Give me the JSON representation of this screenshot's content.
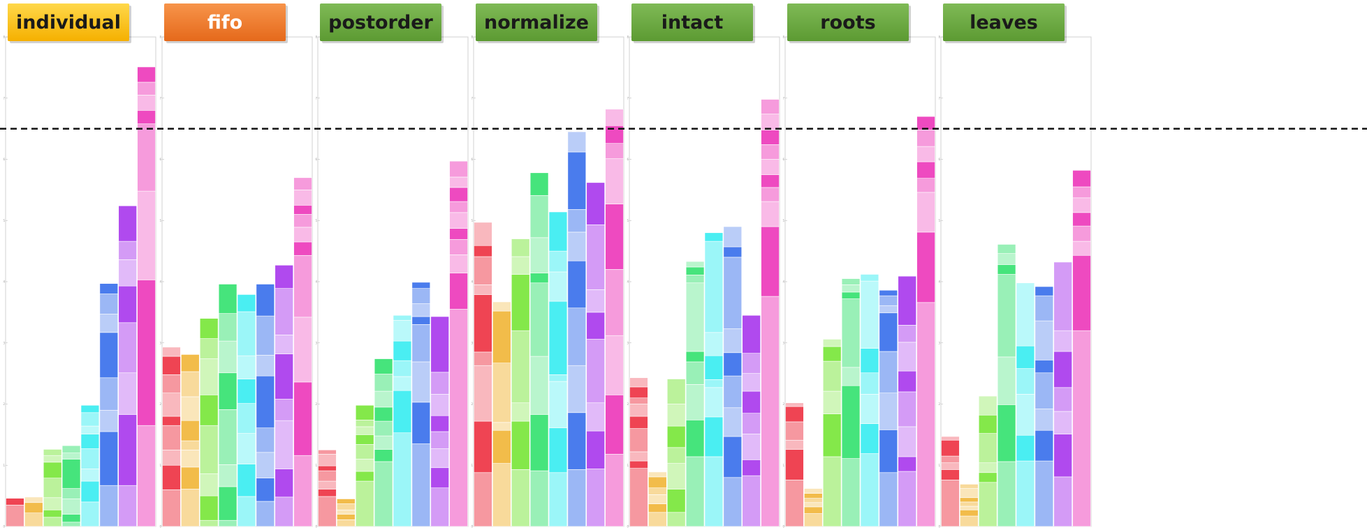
{
  "chart_data": {
    "type": "bar",
    "stacked": true,
    "ylim": [
      0,
      8
    ],
    "reference_line": 6.5,
    "legend_placement": "top-right",
    "bar_colors": [
      "#ef4453",
      "#f2bc4a",
      "#84e84a",
      "#46e47c",
      "#4aeef2",
      "#4a7ced",
      "#b04aee",
      "#ee4ac0"
    ],
    "panels": [
      {
        "label": "individual",
        "label_style": "yellow",
        "segments": [
          [
            0.35,
            0.11
          ],
          [
            0.22,
            0.17,
            0.09
          ],
          [
            0.15,
            0.12,
            0.2,
            0.32,
            0.26,
            0.11,
            0.1
          ],
          [
            0.07,
            0.13,
            0.25,
            0.17,
            0.48,
            0.1,
            0.12
          ],
          [
            0.4,
            0.34,
            0.2,
            0.33,
            0.24,
            0.13,
            0.22,
            0.12
          ],
          [
            0.67,
            0.88,
            0.35,
            0.53,
            0.74,
            0.3,
            0.33,
            0.17
          ],
          [
            0.67,
            1.16,
            0.68,
            0.82,
            0.6,
            0.43,
            0.3,
            0.58
          ],
          [
            1.65,
            2.38,
            1.45,
            1.1,
            0.22,
            0.25,
            0.21,
            0.25
          ]
        ]
      },
      {
        "label": "fifo",
        "label_style": "orange",
        "segments": [
          [
            0.6,
            0.4,
            0.25,
            0.4,
            0.15,
            0.38,
            0.3,
            0.3,
            0.15
          ],
          [
            0.61,
            0.36,
            0.28,
            0.15,
            0.33,
            0.39,
            0.41,
            0.28
          ],
          [
            0.1,
            0.4,
            0.36,
            0.79,
            0.5,
            0.59,
            0.33,
            0.33
          ],
          [
            0.1,
            0.55,
            0.36,
            0.9,
            0.6,
            0.52,
            0.45,
            0.48
          ],
          [
            0.49,
            0.53,
            0.5,
            0.49,
            0.4,
            0.38,
            0.72,
            0.28
          ],
          [
            0.41,
            0.38,
            0.42,
            0.4,
            0.85,
            0.34,
            0.64,
            0.52
          ],
          [
            0.48,
            0.46,
            0.79,
            0.35,
            0.74,
            0.31,
            0.76,
            0.38
          ],
          [
            1.16,
            1.2,
            1.06,
            1.01,
            0.22,
            0.24,
            0.21,
            0.15,
            0.25,
            0.2
          ]
        ]
      },
      {
        "label": "postorder",
        "label_style": "green",
        "segments": [
          [
            0.49,
            0.12,
            0.13,
            0.17,
            0.08,
            0.19,
            0.07
          ],
          [
            0.11,
            0.09,
            0.07,
            0.1,
            0.08
          ],
          [
            0.74,
            0.16,
            0.2,
            0.24,
            0.16,
            0.13,
            0.11,
            0.24
          ],
          [
            1.06,
            0.2,
            0.22,
            0.24,
            0.23,
            0.26,
            0.28,
            0.25
          ],
          [
            1.53,
            0.69,
            0.23,
            0.26,
            0.32,
            0.34,
            0.08
          ],
          [
            1.35,
            0.68,
            0.66,
            0.61,
            0.13,
            0.21,
            0.25,
            0.1
          ],
          [
            0.63,
            0.33,
            0.31,
            0.28,
            0.26,
            0.35,
            0.36,
            0.91
          ],
          [
            3.55,
            0.59,
            0.3,
            0.25,
            0.18,
            0.26,
            0.18,
            0.23,
            0.17,
            0.26
          ]
        ]
      },
      {
        "label": "normalize",
        "label_style": "green",
        "segments": [
          [
            0.88,
            0.84,
            0.91,
            0.22,
            0.94,
            0.16,
            0.46,
            0.18,
            0.38
          ],
          [
            1.03,
            0.54,
            0.13,
            0.97,
            0.85,
            0.15
          ],
          [
            0.93,
            0.79,
            0.3,
            1.18,
            0.92,
            0.29,
            0.29
          ],
          [
            0.91,
            0.92,
            0.95,
            1.2,
            0.16,
            0.58,
            0.69,
            0.37
          ],
          [
            0.88,
            0.73,
            0.76,
            0.11,
            1.2,
            0.48,
            0.34,
            0.64
          ],
          [
            0.93,
            0.93,
            0.77,
            0.94,
            0.77,
            0.47,
            0.37,
            0.94,
            0.33
          ],
          [
            0.94,
            0.62,
            0.46,
            1.04,
            0.44,
            0.37,
            1.06,
            0.69
          ],
          [
            1.18,
            0.97,
            0.97,
            1.08,
            1.07,
            0.74,
            0.25,
            0.29,
            0.27
          ]
        ]
      },
      {
        "label": "intact",
        "label_style": "green",
        "segments": [
          [
            0.95,
            0.12,
            0.15,
            0.38,
            0.2,
            0.2,
            0.1,
            0.18,
            0.15
          ],
          [
            0.23,
            0.14,
            0.15,
            0.11,
            0.18,
            0.08
          ],
          [
            0.23,
            0.38,
            0.42,
            0.26,
            0.35,
            0.36,
            0.41
          ],
          [
            1.14,
            0.6,
            0.58,
            0.37,
            0.17,
            1.12,
            0.13,
            0.13,
            0.09
          ],
          [
            1.14,
            0.65,
            0.48,
            0.13,
            0.39,
            0.38,
            1.49,
            0.14
          ],
          [
            0.8,
            0.67,
            0.47,
            0.52,
            0.38,
            0.39,
            1.17,
            0.17,
            0.33
          ],
          [
            0.83,
            0.26,
            0.42,
            0.34,
            0.36,
            0.29,
            0.33,
            0.62
          ],
          [
            3.76,
            1.14,
            0.41,
            0.23,
            0.21,
            0.25,
            0.24,
            0.24,
            0.26,
            0.24
          ]
        ]
      },
      {
        "label": "roots",
        "label_style": "green",
        "segments": [
          [
            0.76,
            0.5,
            0.15,
            0.3,
            0.25,
            0.06
          ],
          [
            0.21,
            0.11,
            0.07,
            0.07,
            0.08,
            0.08
          ],
          [
            1.14,
            0.7,
            0.37,
            0.49,
            0.24,
            0.12
          ],
          [
            1.11,
            1.19,
            0.3,
            1.12,
            0.11,
            0.12,
            0.1
          ],
          [
            1.19,
            0.49,
            0.48,
            0.35,
            0.4,
            1.1,
            0.11
          ],
          [
            0.88,
            0.7,
            0.6,
            0.68,
            0.63,
            0.12,
            0.16,
            0.09
          ],
          [
            0.9,
            0.24,
            0.49,
            0.57,
            0.34,
            0.47,
            0.28,
            0.8
          ],
          [
            3.66,
            1.15,
            0.65,
            0.23,
            0.27,
            0.25,
            0.27,
            0.22
          ]
        ]
      },
      {
        "label": "leaves",
        "label_style": "green",
        "segments": [
          [
            0.76,
            0.17,
            0.11,
            0.11,
            0.26,
            0.06
          ],
          [
            0.17,
            0.1,
            0.06,
            0.07,
            0.07,
            0.15,
            0.07
          ],
          [
            0.72,
            0.16,
            0.16,
            0.48,
            0.3,
            0.31
          ],
          [
            1.06,
            0.93,
            0.78,
            1.35,
            0.16,
            0.18,
            0.15
          ],
          [
            1.07,
            0.42,
            0.67,
            0.42,
            0.37,
            1.03
          ],
          [
            1.07,
            0.5,
            0.35,
            0.59,
            0.21,
            0.64,
            0.41,
            0.15
          ],
          [
            0.81,
            0.7,
            0.37,
            0.39,
            0.59,
            0.34,
            1.12
          ],
          [
            3.2,
            1.23,
            0.23,
            0.25,
            0.22,
            0.24,
            0.18,
            0.27
          ]
        ]
      }
    ]
  }
}
